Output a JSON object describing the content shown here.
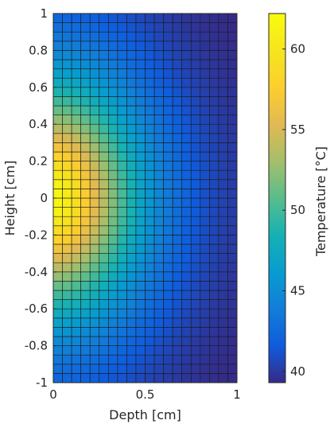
{
  "chart_data": {
    "type": "heatmap",
    "title": "",
    "xlabel": "Depth [cm]",
    "ylabel": "Height [cm]",
    "xlim": [
      0,
      1
    ],
    "ylim": [
      -1,
      1
    ],
    "x_ticks": [
      {
        "value": 0,
        "label": "0"
      },
      {
        "value": 0.5,
        "label": "0.5"
      },
      {
        "value": 1,
        "label": "1"
      }
    ],
    "y_ticks": [
      {
        "value": 1,
        "label": "1"
      },
      {
        "value": 0.8,
        "label": "0.8"
      },
      {
        "value": 0.6,
        "label": "0.6"
      },
      {
        "value": 0.4,
        "label": "0.4"
      },
      {
        "value": 0.2,
        "label": "0.2"
      },
      {
        "value": 0,
        "label": "0"
      },
      {
        "value": -0.2,
        "label": "-0.2"
      },
      {
        "value": -0.4,
        "label": "-0.4"
      },
      {
        "value": -0.6,
        "label": "-0.6"
      },
      {
        "value": -0.8,
        "label": "-0.8"
      },
      {
        "value": -1,
        "label": "-1"
      }
    ],
    "grid": {
      "columns": 20,
      "rows": 40,
      "cell_edge_color": "#1a1a1a"
    },
    "field": {
      "description": "Temperature field: hot at x=0, y=0; cooler toward x=1 and |y|=1",
      "peak": 62,
      "min": 39.5,
      "hot_center": [
        0,
        0
      ]
    },
    "colorbar": {
      "label": "Temperature [°C]",
      "range": [
        39.3,
        62.2
      ],
      "ticks": [
        {
          "value": 40,
          "label": "40"
        },
        {
          "value": 45,
          "label": "45"
        },
        {
          "value": 50,
          "label": "50"
        },
        {
          "value": 55,
          "label": "55"
        },
        {
          "value": 60,
          "label": "60"
        }
      ],
      "colormap": "parula"
    },
    "colors": {
      "axis": "#262626",
      "background": "#ffffff"
    }
  }
}
